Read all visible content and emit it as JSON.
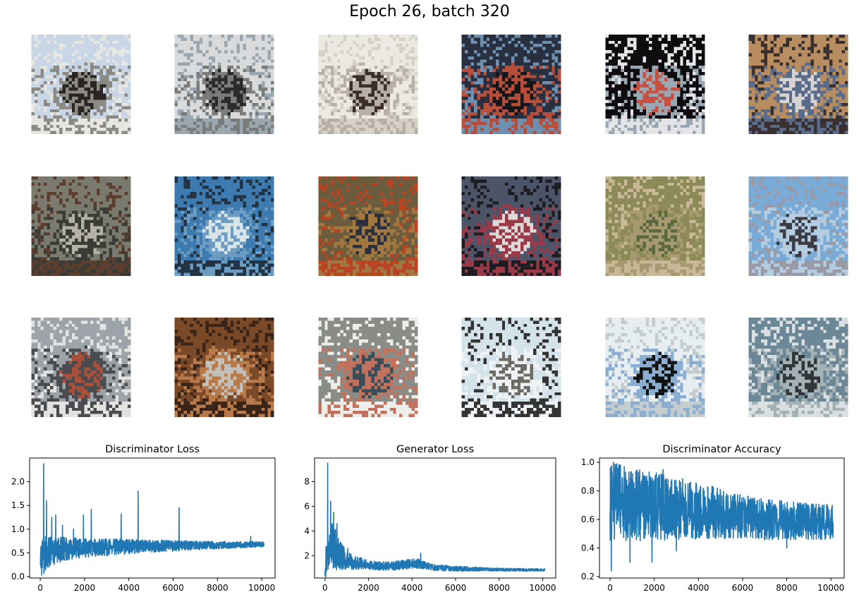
{
  "figure": {
    "title": "Epoch 26, batch 320"
  },
  "samples": {
    "rows": 3,
    "cols": 6,
    "palettes": [
      [
        "#c9d6e6",
        "#8c8a85",
        "#2b2522",
        "#e8e6e2"
      ],
      [
        "#d8dadc",
        "#7a7c7a",
        "#2a2b2a",
        "#9aa6b0"
      ],
      [
        "#ece8e2",
        "#b8b0a6",
        "#3a2e26",
        "#d6d0c6"
      ],
      [
        "#283040",
        "#b84e3a",
        "#15161a",
        "#6f8fb0"
      ],
      [
        "#0e0c0e",
        "#9aa8b4",
        "#c85040",
        "#e4e4e6"
      ],
      [
        "#b88e60",
        "#5a6c8c",
        "#d8d4d2",
        "#3a3030"
      ],
      [
        "#7a7a6e",
        "#3a3c36",
        "#b4b0a4",
        "#5c3e2e"
      ],
      [
        "#3c7ab0",
        "#6c9cc2",
        "#d8e6ea",
        "#223444"
      ],
      [
        "#6c5c3e",
        "#a07840",
        "#2a3040",
        "#b84424"
      ],
      [
        "#4c5468",
        "#9a3a48",
        "#dcd8d8",
        "#1c1c22"
      ],
      [
        "#8c8a58",
        "#a89a70",
        "#5c6840",
        "#c8b898"
      ],
      [
        "#7aaad6",
        "#b4cce0",
        "#3c3c44",
        "#9a9aa6"
      ],
      [
        "#9ca4aa",
        "#4a4c50",
        "#a8503a",
        "#e2e2e0"
      ],
      [
        "#7a4a28",
        "#b87a4a",
        "#c2c0b8",
        "#3a2418"
      ],
      [
        "#8a8c88",
        "#c2725c",
        "#3a4e5a",
        "#eceeea"
      ],
      [
        "#d4e2ea",
        "#eef2f4",
        "#6c6c64",
        "#343434"
      ],
      [
        "#e6eef2",
        "#8caed2",
        "#121414",
        "#c4cccc"
      ],
      [
        "#6c8896",
        "#a4b2b6",
        "#30363a",
        "#dae0e2"
      ]
    ]
  },
  "charts": [
    {
      "name": "discriminator-loss",
      "title": "Discriminator Loss",
      "xticks": [
        "0",
        "2000",
        "4000",
        "6000",
        "8000",
        "10000"
      ],
      "yticks": [
        "0.0",
        "0.5",
        "1.0",
        "1.5",
        "2.0"
      ]
    },
    {
      "name": "generator-loss",
      "title": "Generator Loss",
      "xticks": [
        "0",
        "2000",
        "4000",
        "6000",
        "8000",
        "10000"
      ],
      "yticks": [
        "2",
        "4",
        "6",
        "8"
      ]
    },
    {
      "name": "discriminator-accuracy",
      "title": "Discriminator Accuracy",
      "xticks": [
        "0",
        "2000",
        "4000",
        "6000",
        "8000",
        "10000"
      ],
      "yticks": [
        "0.2",
        "0.4",
        "0.6",
        "0.8",
        "1.0"
      ]
    }
  ],
  "chart_data": [
    {
      "type": "line",
      "title": "Discriminator Loss",
      "xlim": [
        -480,
        10600
      ],
      "ylim": [
        -0.03,
        2.5
      ],
      "xticks": [
        0,
        2000,
        4000,
        6000,
        8000,
        10000
      ],
      "yticks": [
        0.0,
        0.5,
        1.0,
        1.5,
        2.0
      ],
      "color": "#1f77b4",
      "x_end": 10100,
      "trend": [
        [
          0,
          0.45
        ],
        [
          400,
          0.5
        ],
        [
          1000,
          0.58
        ],
        [
          3000,
          0.62
        ],
        [
          6000,
          0.65
        ],
        [
          10100,
          0.68
        ]
      ],
      "spread": [
        [
          0,
          0.45
        ],
        [
          600,
          0.3
        ],
        [
          2000,
          0.2
        ],
        [
          5000,
          0.13
        ],
        [
          8000,
          0.08
        ],
        [
          10100,
          0.06
        ]
      ],
      "spikes": [
        [
          150,
          2.38
        ],
        [
          280,
          1.6
        ],
        [
          520,
          1.25
        ],
        [
          700,
          1.3
        ],
        [
          1000,
          1.08
        ],
        [
          1500,
          1.0
        ],
        [
          1950,
          1.3
        ],
        [
          2300,
          1.42
        ],
        [
          3650,
          1.32
        ],
        [
          4420,
          1.8
        ],
        [
          6270,
          1.45
        ],
        [
          9500,
          0.85
        ]
      ]
    },
    {
      "type": "line",
      "title": "Generator Loss",
      "xlim": [
        -480,
        10600
      ],
      "ylim": [
        0.2,
        9.9
      ],
      "xticks": [
        0,
        2000,
        4000,
        6000,
        8000,
        10000
      ],
      "yticks": [
        2,
        4,
        6,
        8
      ],
      "color": "#1f77b4",
      "x_end": 10100,
      "trend": [
        [
          0,
          1.2
        ],
        [
          300,
          3.0
        ],
        [
          600,
          2.2
        ],
        [
          1000,
          1.6
        ],
        [
          2000,
          1.25
        ],
        [
          3000,
          1.15
        ],
        [
          4200,
          1.4
        ],
        [
          5000,
          1.05
        ],
        [
          6000,
          0.95
        ],
        [
          8000,
          0.88
        ],
        [
          10100,
          0.85
        ]
      ],
      "spread": [
        [
          0,
          1.2
        ],
        [
          400,
          1.8
        ],
        [
          1000,
          0.7
        ],
        [
          2000,
          0.35
        ],
        [
          4200,
          0.4
        ],
        [
          5000,
          0.25
        ],
        [
          8000,
          0.12
        ],
        [
          10100,
          0.1
        ]
      ],
      "spikes": [
        [
          120,
          9.5
        ],
        [
          260,
          6.4
        ],
        [
          400,
          5.5
        ],
        [
          550,
          4.6
        ],
        [
          750,
          3.0
        ],
        [
          1050,
          2.6
        ],
        [
          4400,
          2.2
        ]
      ]
    },
    {
      "type": "line",
      "title": "Discriminator Accuracy",
      "xlim": [
        -480,
        10600
      ],
      "ylim": [
        0.19,
        1.03
      ],
      "xticks": [
        0,
        2000,
        4000,
        6000,
        8000,
        10000
      ],
      "yticks": [
        0.2,
        0.4,
        0.6,
        0.8,
        1.0
      ],
      "color": "#1f77b4",
      "x_end": 10100,
      "trend": [
        [
          0,
          0.72
        ],
        [
          1000,
          0.7
        ],
        [
          3000,
          0.68
        ],
        [
          5000,
          0.64
        ],
        [
          7000,
          0.6
        ],
        [
          10100,
          0.58
        ]
      ],
      "spread": [
        [
          0,
          0.28
        ],
        [
          2000,
          0.24
        ],
        [
          4000,
          0.2
        ],
        [
          6000,
          0.15
        ],
        [
          10100,
          0.12
        ]
      ],
      "spikes": [
        [
          60,
          0.24
        ],
        [
          150,
          1.0
        ],
        [
          300,
          0.99
        ],
        [
          900,
          0.3
        ],
        [
          1900,
          0.3
        ],
        [
          2400,
          0.95
        ],
        [
          3000,
          0.38
        ],
        [
          8000,
          0.4
        ]
      ]
    }
  ]
}
